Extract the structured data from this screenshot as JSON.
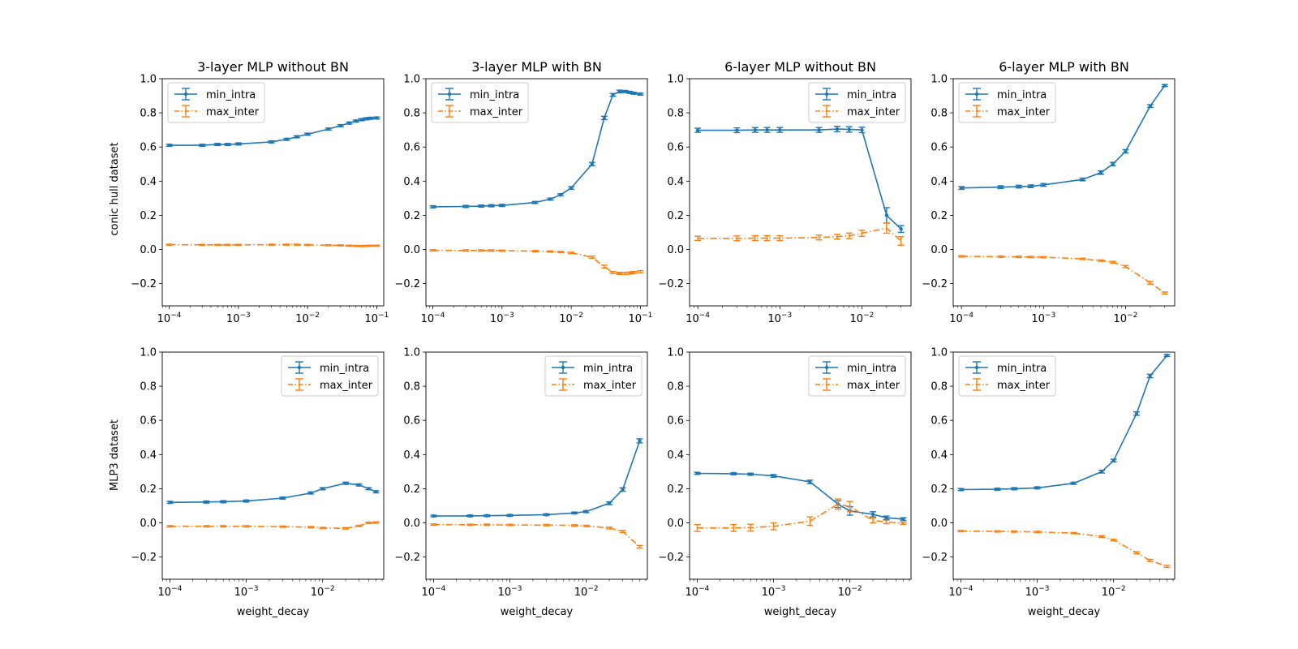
{
  "figure": {
    "row_labels": [
      "conic hull dataset",
      "MLP3 dataset"
    ],
    "xlabel": "weight_decay"
  },
  "colors": {
    "min_intra": "#1f77b4",
    "max_inter": "#ff7f0e"
  },
  "legend_labels": [
    "min_intra",
    "max_inter"
  ],
  "chart_data": [
    {
      "type": "line",
      "title": "3-layer MLP without BN",
      "xscale": "log",
      "xlim": [
        7.94e-05,
        0.126
      ],
      "ylim": [
        -0.33,
        1.0
      ],
      "legend_loc": "upper left",
      "x_ticks": [
        0.0001,
        0.001,
        0.01,
        0.1
      ],
      "y_ticks": [
        -0.2,
        0,
        0.2,
        0.4,
        0.6,
        0.8,
        1.0
      ],
      "series": [
        {
          "name": "min_intra",
          "x": [
            0.0001,
            0.0003,
            0.0005,
            0.0007,
            0.001,
            0.003,
            0.005,
            0.007,
            0.01,
            0.02,
            0.03,
            0.04,
            0.05,
            0.06,
            0.07,
            0.08,
            0.1
          ],
          "y": [
            0.61,
            0.61,
            0.615,
            0.615,
            0.618,
            0.63,
            0.645,
            0.66,
            0.675,
            0.705,
            0.725,
            0.74,
            0.752,
            0.76,
            0.765,
            0.768,
            0.77
          ],
          "err": [
            0.006,
            0.006,
            0.006,
            0.006,
            0.006,
            0.006,
            0.006,
            0.006,
            0.006,
            0.006,
            0.006,
            0.006,
            0.006,
            0.006,
            0.006,
            0.006,
            0.006
          ]
        },
        {
          "name": "max_inter",
          "x": [
            0.0001,
            0.0003,
            0.0005,
            0.0007,
            0.001,
            0.003,
            0.005,
            0.007,
            0.01,
            0.02,
            0.03,
            0.04,
            0.05,
            0.06,
            0.07,
            0.08,
            0.1
          ],
          "y": [
            0.028,
            0.027,
            0.027,
            0.027,
            0.027,
            0.028,
            0.028,
            0.028,
            0.027,
            0.025,
            0.024,
            0.022,
            0.021,
            0.02,
            0.021,
            0.022,
            0.022
          ],
          "err": [
            0.003,
            0.003,
            0.003,
            0.003,
            0.003,
            0.003,
            0.003,
            0.003,
            0.003,
            0.003,
            0.003,
            0.003,
            0.003,
            0.003,
            0.003,
            0.003,
            0.003
          ]
        }
      ]
    },
    {
      "type": "line",
      "title": "3-layer MLP with BN",
      "xscale": "log",
      "xlim": [
        7.94e-05,
        0.126
      ],
      "ylim": [
        -0.33,
        1.0
      ],
      "legend_loc": "upper left",
      "x_ticks": [
        0.0001,
        0.001,
        0.01,
        0.1
      ],
      "y_ticks": [
        -0.2,
        0,
        0.2,
        0.4,
        0.6,
        0.8,
        1.0
      ],
      "series": [
        {
          "name": "min_intra",
          "x": [
            0.0001,
            0.0003,
            0.0005,
            0.0007,
            0.001,
            0.003,
            0.005,
            0.007,
            0.01,
            0.02,
            0.03,
            0.04,
            0.05,
            0.06,
            0.07,
            0.08,
            0.1
          ],
          "y": [
            0.25,
            0.252,
            0.254,
            0.256,
            0.258,
            0.275,
            0.295,
            0.32,
            0.36,
            0.5,
            0.77,
            0.905,
            0.925,
            0.925,
            0.92,
            0.915,
            0.91
          ],
          "err": [
            0.006,
            0.006,
            0.006,
            0.006,
            0.006,
            0.006,
            0.006,
            0.006,
            0.008,
            0.01,
            0.01,
            0.008,
            0.008,
            0.006,
            0.006,
            0.006,
            0.006
          ]
        },
        {
          "name": "max_inter",
          "x": [
            0.0001,
            0.0003,
            0.0005,
            0.0007,
            0.001,
            0.003,
            0.005,
            0.007,
            0.01,
            0.02,
            0.03,
            0.04,
            0.05,
            0.06,
            0.07,
            0.08,
            0.1
          ],
          "y": [
            -0.005,
            -0.006,
            -0.006,
            -0.006,
            -0.007,
            -0.01,
            -0.012,
            -0.015,
            -0.02,
            -0.045,
            -0.1,
            -0.135,
            -0.14,
            -0.14,
            -0.138,
            -0.135,
            -0.13
          ],
          "err": [
            0.004,
            0.004,
            0.004,
            0.004,
            0.004,
            0.004,
            0.004,
            0.004,
            0.004,
            0.006,
            0.008,
            0.006,
            0.006,
            0.006,
            0.006,
            0.006,
            0.006
          ]
        }
      ]
    },
    {
      "type": "line",
      "title": "6-layer MLP without BN",
      "xscale": "log",
      "xlim": [
        7.94e-05,
        0.0397
      ],
      "ylim": [
        -0.33,
        1.0
      ],
      "legend_loc": "upper right",
      "x_ticks": [
        0.0001,
        0.001,
        0.01
      ],
      "y_ticks": [
        -0.2,
        0,
        0.2,
        0.4,
        0.6,
        0.8,
        1.0
      ],
      "series": [
        {
          "name": "min_intra",
          "x": [
            0.0001,
            0.0003,
            0.0005,
            0.0007,
            0.001,
            0.003,
            0.005,
            0.007,
            0.01,
            0.02,
            0.03
          ],
          "y": [
            0.698,
            0.698,
            0.7,
            0.7,
            0.7,
            0.7,
            0.705,
            0.703,
            0.7,
            0.2,
            0.12
          ],
          "err": [
            0.012,
            0.014,
            0.014,
            0.014,
            0.014,
            0.014,
            0.016,
            0.016,
            0.016,
            0.045,
            0.02
          ]
        },
        {
          "name": "max_inter",
          "x": [
            0.0001,
            0.0003,
            0.0005,
            0.0007,
            0.001,
            0.003,
            0.005,
            0.007,
            0.01,
            0.02,
            0.03
          ],
          "y": [
            0.065,
            0.065,
            0.066,
            0.066,
            0.066,
            0.07,
            0.075,
            0.08,
            0.095,
            0.125,
            0.05
          ],
          "err": [
            0.012,
            0.014,
            0.014,
            0.014,
            0.014,
            0.014,
            0.014,
            0.016,
            0.018,
            0.03,
            0.025
          ]
        }
      ]
    },
    {
      "type": "line",
      "title": "6-layer MLP with BN",
      "xscale": "log",
      "xlim": [
        7.94e-05,
        0.0397
      ],
      "ylim": [
        -0.33,
        1.0
      ],
      "legend_loc": "upper left",
      "x_ticks": [
        0.0001,
        0.001,
        0.01
      ],
      "y_ticks": [
        -0.2,
        0,
        0.2,
        0.4,
        0.6,
        0.8,
        1.0
      ],
      "series": [
        {
          "name": "min_intra",
          "x": [
            0.0001,
            0.0003,
            0.0005,
            0.0007,
            0.001,
            0.003,
            0.005,
            0.007,
            0.01,
            0.02,
            0.03
          ],
          "y": [
            0.36,
            0.365,
            0.368,
            0.37,
            0.378,
            0.41,
            0.45,
            0.5,
            0.575,
            0.84,
            0.96
          ],
          "err": [
            0.008,
            0.008,
            0.008,
            0.008,
            0.008,
            0.008,
            0.01,
            0.01,
            0.01,
            0.008,
            0.006
          ]
        },
        {
          "name": "max_inter",
          "x": [
            0.0001,
            0.0003,
            0.0005,
            0.0007,
            0.001,
            0.003,
            0.005,
            0.007,
            0.01,
            0.02,
            0.03
          ],
          "y": [
            -0.04,
            -0.042,
            -0.043,
            -0.044,
            -0.045,
            -0.055,
            -0.065,
            -0.075,
            -0.1,
            -0.195,
            -0.255
          ],
          "err": [
            0.004,
            0.004,
            0.004,
            0.004,
            0.004,
            0.004,
            0.004,
            0.005,
            0.006,
            0.008,
            0.006
          ]
        }
      ]
    },
    {
      "type": "line",
      "title": "",
      "xscale": "log",
      "xlim": [
        7.94e-05,
        0.0631
      ],
      "ylim": [
        -0.33,
        1.0
      ],
      "legend_loc": "upper right",
      "x_ticks": [
        0.0001,
        0.001,
        0.01
      ],
      "y_ticks": [
        -0.2,
        0,
        0.2,
        0.4,
        0.6,
        0.8,
        1.0
      ],
      "series": [
        {
          "name": "min_intra",
          "x": [
            0.0001,
            0.0003,
            0.0005,
            0.001,
            0.003,
            0.007,
            0.01,
            0.02,
            0.03,
            0.04,
            0.05
          ],
          "y": [
            0.12,
            0.122,
            0.124,
            0.128,
            0.145,
            0.175,
            0.2,
            0.232,
            0.222,
            0.2,
            0.182
          ],
          "err": [
            0.006,
            0.006,
            0.006,
            0.006,
            0.006,
            0.006,
            0.006,
            0.006,
            0.006,
            0.006,
            0.006
          ]
        },
        {
          "name": "max_inter",
          "x": [
            0.0001,
            0.0003,
            0.0005,
            0.001,
            0.003,
            0.007,
            0.01,
            0.02,
            0.03,
            0.04,
            0.05
          ],
          "y": [
            -0.02,
            -0.02,
            -0.02,
            -0.02,
            -0.022,
            -0.025,
            -0.03,
            -0.032,
            -0.018,
            0.0,
            0.002
          ],
          "err": [
            0.004,
            0.004,
            0.004,
            0.004,
            0.004,
            0.004,
            0.004,
            0.004,
            0.004,
            0.004,
            0.004
          ]
        }
      ]
    },
    {
      "type": "line",
      "title": "",
      "xscale": "log",
      "xlim": [
        7.94e-05,
        0.0631
      ],
      "ylim": [
        -0.33,
        1.0
      ],
      "legend_loc": "upper right",
      "x_ticks": [
        0.0001,
        0.001,
        0.01
      ],
      "y_ticks": [
        -0.2,
        0,
        0.2,
        0.4,
        0.6,
        0.8,
        1.0
      ],
      "series": [
        {
          "name": "min_intra",
          "x": [
            0.0001,
            0.0003,
            0.0005,
            0.001,
            0.003,
            0.007,
            0.01,
            0.02,
            0.03,
            0.05
          ],
          "y": [
            0.04,
            0.041,
            0.042,
            0.044,
            0.048,
            0.058,
            0.066,
            0.115,
            0.195,
            0.48
          ],
          "err": [
            0.005,
            0.005,
            0.005,
            0.005,
            0.005,
            0.005,
            0.006,
            0.008,
            0.01,
            0.012
          ]
        },
        {
          "name": "max_inter",
          "x": [
            0.0001,
            0.0003,
            0.0005,
            0.001,
            0.003,
            0.007,
            0.01,
            0.02,
            0.03,
            0.05
          ],
          "y": [
            -0.01,
            -0.011,
            -0.011,
            -0.012,
            -0.013,
            -0.015,
            -0.018,
            -0.03,
            -0.05,
            -0.14
          ],
          "err": [
            0.004,
            0.004,
            0.004,
            0.004,
            0.004,
            0.004,
            0.004,
            0.005,
            0.006,
            0.008
          ]
        }
      ]
    },
    {
      "type": "line",
      "title": "",
      "xscale": "log",
      "xlim": [
        7.94e-05,
        0.0631
      ],
      "ylim": [
        -0.33,
        1.0
      ],
      "legend_loc": "upper right",
      "x_ticks": [
        0.0001,
        0.001,
        0.01
      ],
      "y_ticks": [
        -0.2,
        0,
        0.2,
        0.4,
        0.6,
        0.8,
        1.0
      ],
      "series": [
        {
          "name": "min_intra",
          "x": [
            0.0001,
            0.0003,
            0.0005,
            0.001,
            0.003,
            0.007,
            0.01,
            0.02,
            0.03,
            0.05
          ],
          "y": [
            0.29,
            0.288,
            0.285,
            0.275,
            0.24,
            0.11,
            0.07,
            0.05,
            0.03,
            0.022
          ],
          "err": [
            0.006,
            0.006,
            0.006,
            0.008,
            0.01,
            0.02,
            0.025,
            0.015,
            0.01,
            0.008
          ]
        },
        {
          "name": "max_inter",
          "x": [
            0.0001,
            0.0003,
            0.0005,
            0.001,
            0.003,
            0.007,
            0.01,
            0.02,
            0.03,
            0.05
          ],
          "y": [
            -0.03,
            -0.03,
            -0.028,
            -0.02,
            0.01,
            0.11,
            0.095,
            0.015,
            0.005,
            -0.002
          ],
          "err": [
            0.02,
            0.02,
            0.02,
            0.02,
            0.025,
            0.03,
            0.03,
            0.015,
            0.01,
            0.006
          ]
        }
      ]
    },
    {
      "type": "line",
      "title": "",
      "xscale": "log",
      "xlim": [
        7.94e-05,
        0.0631
      ],
      "ylim": [
        -0.33,
        1.0
      ],
      "legend_loc": "upper left",
      "x_ticks": [
        0.0001,
        0.001,
        0.01
      ],
      "y_ticks": [
        -0.2,
        0,
        0.2,
        0.4,
        0.6,
        0.8,
        1.0
      ],
      "series": [
        {
          "name": "min_intra",
          "x": [
            0.0001,
            0.0003,
            0.0005,
            0.001,
            0.003,
            0.007,
            0.01,
            0.02,
            0.03,
            0.05
          ],
          "y": [
            0.195,
            0.197,
            0.2,
            0.205,
            0.232,
            0.3,
            0.365,
            0.64,
            0.86,
            0.98
          ],
          "err": [
            0.006,
            0.006,
            0.006,
            0.006,
            0.006,
            0.008,
            0.008,
            0.01,
            0.01,
            0.006
          ]
        },
        {
          "name": "max_inter",
          "x": [
            0.0001,
            0.0003,
            0.0005,
            0.001,
            0.003,
            0.007,
            0.01,
            0.02,
            0.03,
            0.05
          ],
          "y": [
            -0.048,
            -0.05,
            -0.051,
            -0.053,
            -0.06,
            -0.08,
            -0.1,
            -0.175,
            -0.22,
            -0.255
          ],
          "err": [
            0.004,
            0.004,
            0.004,
            0.004,
            0.004,
            0.005,
            0.005,
            0.006,
            0.006,
            0.006
          ]
        }
      ]
    }
  ]
}
